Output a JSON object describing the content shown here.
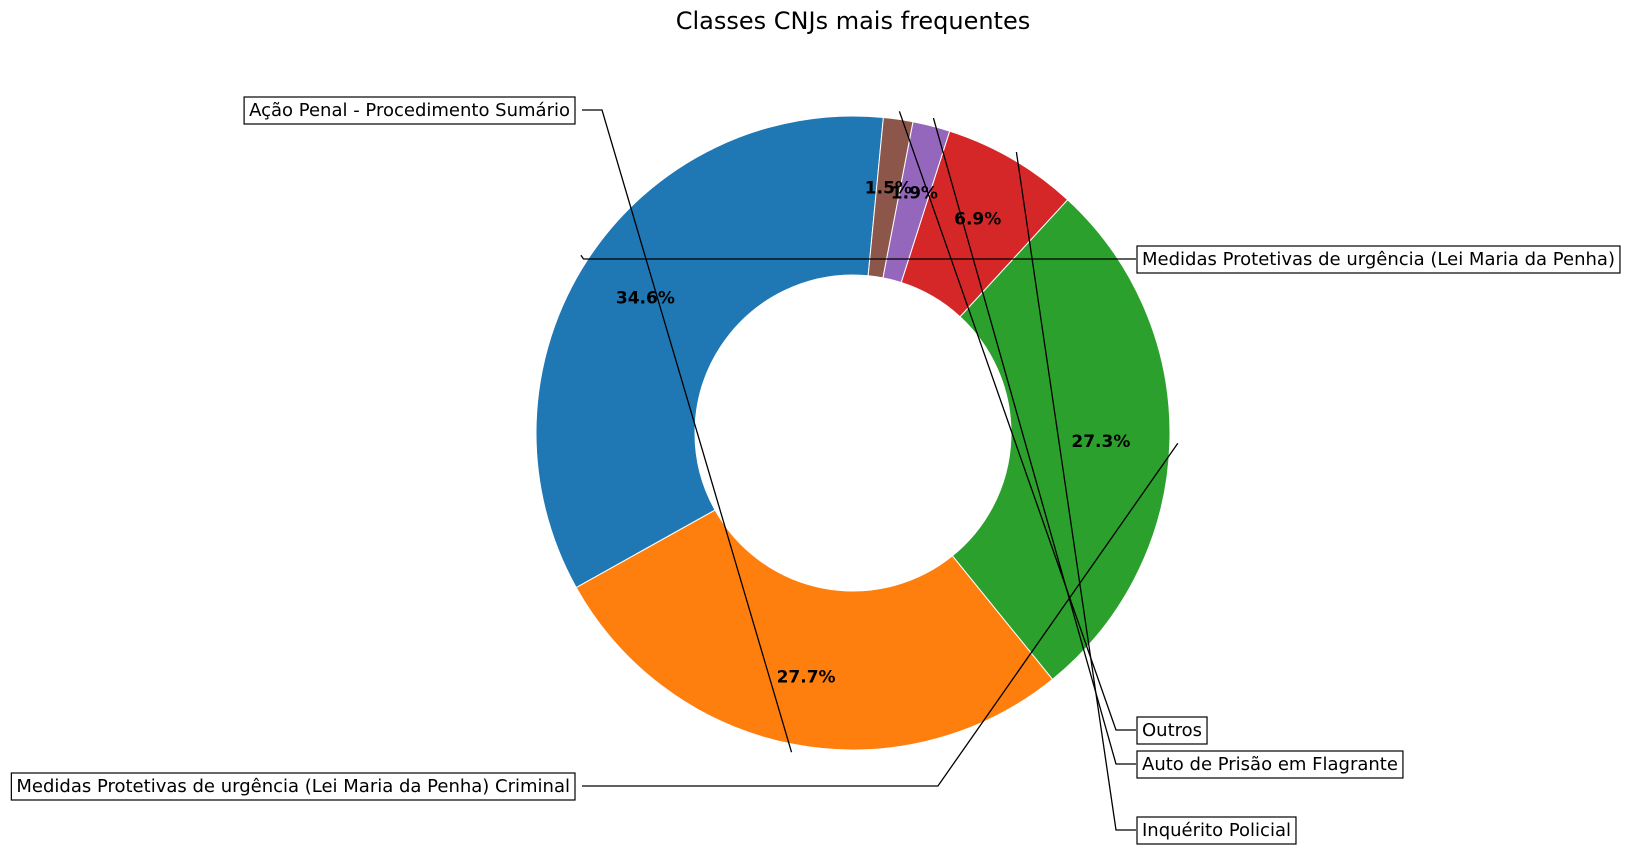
{
  "chart_data": {
    "type": "pie",
    "variant": "donut",
    "title": "Classes CNJs mais frequentes",
    "slices": [
      {
        "label": "Medidas Protetivas de urgência (Lei Maria da Penha)",
        "value": 34.6,
        "pct_label": "34.6%",
        "color": "#1f77b4"
      },
      {
        "label": "Ação Penal - Procedimento Sumário",
        "value": 27.7,
        "pct_label": "27.7%",
        "color": "#ff7f0e"
      },
      {
        "label": "Medidas Protetivas de urgência (Lei Maria da Penha) Criminal",
        "value": 27.3,
        "pct_label": "27.3%",
        "color": "#2ca02c"
      },
      {
        "label": "Inquérito Policial",
        "value": 6.9,
        "pct_label": "6.9%",
        "color": "#d62728"
      },
      {
        "label": "Auto de Prisão em Flagrante",
        "value": 1.9,
        "pct_label": "1.9%",
        "color": "#9467bd"
      },
      {
        "label": "Outros",
        "value": 1.5,
        "pct_label": "1.5%",
        "color": "#8c564b"
      }
    ]
  }
}
